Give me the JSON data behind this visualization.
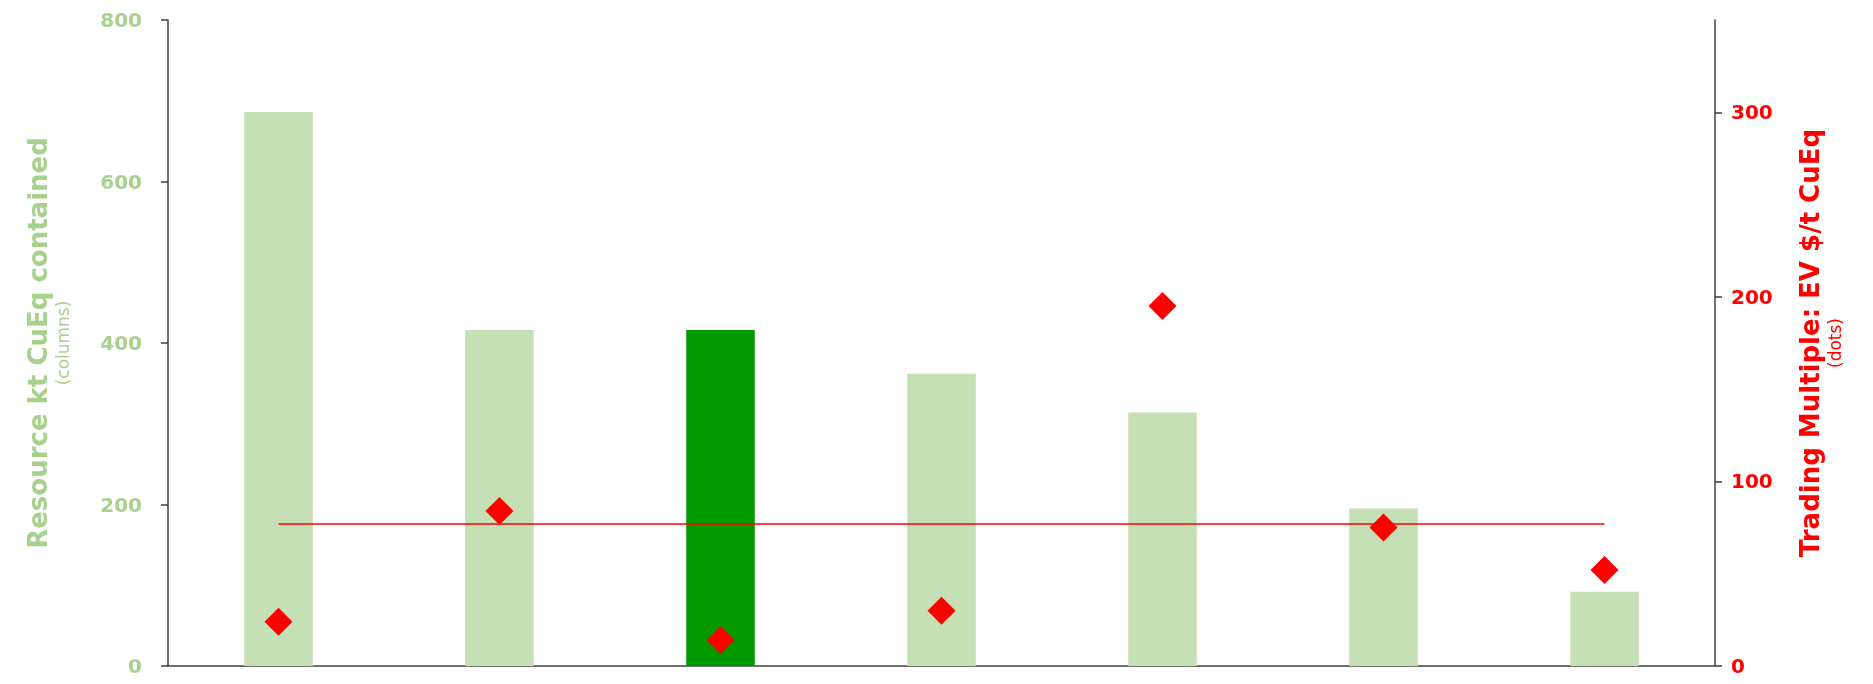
{
  "chart_data": {
    "type": "bar",
    "ylabel": "Resource kt CuEq contained\n(columns)",
    "y2label": "Trading Multiple: EV $/t CuEq\n(dots)",
    "categories": [
      null,
      null,
      null,
      null,
      null,
      null,
      null
    ],
    "series": [
      {
        "colors": [
          "#c5e0b4",
          "#c5e0b4",
          "#009900",
          "#c5e0b4",
          "#c5e0b4",
          "#c5e0b4",
          "#c5e0b4"
        ],
        "values": [
          686,
          416,
          416,
          362,
          314,
          195,
          92
        ]
      },
      {
        "type": "scatter",
        "axis": "y2",
        "color": "#ff0000",
        "marker": "diamond",
        "values": [
          24,
          84,
          14,
          30,
          195,
          75,
          52
        ]
      }
    ],
    "ylim": [
      0,
      800
    ],
    "yticks": [
      0,
      200,
      400,
      600,
      800
    ],
    "y2lim": [
      0,
      350
    ],
    "y2ticks": [
      0,
      100,
      200,
      300
    ],
    "ref_lines": [
      {
        "axis": "y2",
        "value": 77,
        "color": "#ff0000"
      }
    ],
    "tick_labels": "y",
    "grid": false
  }
}
